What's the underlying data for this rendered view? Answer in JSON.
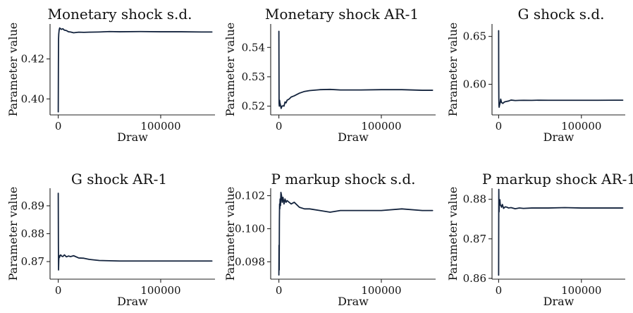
{
  "chart_data": [
    {
      "type": "line",
      "title": "Monetary shock s.d.",
      "xlabel": "Draw",
      "ylabel": "Parameter value",
      "xlim": [
        -8000,
        153000
      ],
      "ylim": [
        0.392,
        0.4375
      ],
      "x_ticks": [
        0,
        100000
      ],
      "x_tick_labels": [
        "0",
        "100000"
      ],
      "y_ticks": [
        0.4,
        0.42
      ],
      "y_tick_labels": [
        "0.40",
        "0.42"
      ],
      "grid": false,
      "series": [
        {
          "x": [
            0,
            150,
            300,
            500,
            900,
            1400,
            2000,
            3000,
            4500,
            6000,
            8000,
            10000,
            12000,
            15000,
            20000,
            25000,
            30000,
            40000,
            50000,
            60000,
            80000,
            100000,
            120000,
            140000,
            150000
          ],
          "y": [
            0.3935,
            0.418,
            0.43,
            0.4325,
            0.4345,
            0.4355,
            0.4352,
            0.4348,
            0.4351,
            0.4344,
            0.4342,
            0.4336,
            0.4335,
            0.4331,
            0.4334,
            0.4333,
            0.4334,
            0.4335,
            0.4337,
            0.4336,
            0.4337,
            0.4336,
            0.4336,
            0.4335,
            0.4335
          ],
          "color": "#13233d"
        }
      ]
    },
    {
      "type": "line",
      "title": "Monetary shock AR-1",
      "xlabel": "Draw",
      "ylabel": "Parameter value",
      "xlim": [
        -8000,
        153000
      ],
      "ylim": [
        0.517,
        0.548
      ],
      "x_ticks": [
        0,
        100000
      ],
      "x_tick_labels": [
        "0",
        "100000"
      ],
      "y_ticks": [
        0.52,
        0.53,
        0.54
      ],
      "y_tick_labels": [
        "0.52",
        "0.53",
        "0.54"
      ],
      "grid": false,
      "series": [
        {
          "x": [
            0,
            200,
            400,
            700,
            1000,
            1500,
            2200,
            3000,
            4000,
            5000,
            6000,
            7000,
            8000,
            10000,
            12000,
            15000,
            20000,
            25000,
            30000,
            40000,
            50000,
            60000,
            80000,
            100000,
            120000,
            140000,
            150000
          ],
          "y": [
            0.5455,
            0.521,
            0.52,
            0.522,
            0.5212,
            0.5204,
            0.5192,
            0.52,
            0.5201,
            0.52,
            0.5214,
            0.5211,
            0.522,
            0.5224,
            0.5231,
            0.5235,
            0.5244,
            0.525,
            0.5253,
            0.5256,
            0.5257,
            0.5255,
            0.5255,
            0.5256,
            0.5256,
            0.5254,
            0.5254
          ],
          "color": "#13233d"
        }
      ]
    },
    {
      "type": "line",
      "title": "G shock s.d.",
      "xlabel": "Draw",
      "ylabel": "Parameter value",
      "xlim": [
        -8000,
        153000
      ],
      "ylim": [
        0.568,
        0.663
      ],
      "x_ticks": [
        0,
        100000
      ],
      "x_tick_labels": [
        "0",
        "100000"
      ],
      "y_ticks": [
        0.6,
        0.65
      ],
      "y_tick_labels": [
        "0.60",
        "0.65"
      ],
      "grid": false,
      "series": [
        {
          "x": [
            0,
            100,
            250,
            400,
            600,
            900,
            1300,
            1800,
            2500,
            3500,
            5000,
            7000,
            9000,
            12000,
            15000,
            20000,
            25000,
            30000,
            40000,
            50000,
            60000,
            80000,
            100000,
            120000,
            140000,
            150000
          ],
          "y": [
            0.656,
            0.605,
            0.585,
            0.578,
            0.576,
            0.5775,
            0.579,
            0.5805,
            0.5845,
            0.581,
            0.58,
            0.5815,
            0.582,
            0.5825,
            0.5835,
            0.583,
            0.5832,
            0.5833,
            0.5832,
            0.5834,
            0.5833,
            0.5833,
            0.5833,
            0.5833,
            0.5834,
            0.5834
          ],
          "color": "#13233d"
        }
      ]
    },
    {
      "type": "line",
      "title": "G shock AR-1",
      "xlabel": "Draw",
      "ylabel": "Parameter value",
      "xlim": [
        -8000,
        153000
      ],
      "ylim": [
        0.8637,
        0.8963
      ],
      "x_ticks": [
        0,
        100000
      ],
      "x_tick_labels": [
        "0",
        "100000"
      ],
      "y_ticks": [
        0.87,
        0.88,
        0.89
      ],
      "y_tick_labels": [
        "0.87",
        "0.88",
        "0.89"
      ],
      "grid": false,
      "series": [
        {
          "x": [
            0,
            150,
            300,
            500,
            800,
            1200,
            1700,
            2400,
            3200,
            4500,
            6000,
            8000,
            10000,
            12000,
            15000,
            20000,
            25000,
            30000,
            40000,
            50000,
            60000,
            80000,
            100000,
            120000,
            140000,
            150000
          ],
          "y": [
            0.8945,
            0.876,
            0.867,
            0.8705,
            0.872,
            0.8715,
            0.8722,
            0.8724,
            0.872,
            0.8718,
            0.8724,
            0.8717,
            0.872,
            0.8718,
            0.8721,
            0.8713,
            0.8712,
            0.8708,
            0.8704,
            0.8703,
            0.8702,
            0.8702,
            0.8702,
            0.8702,
            0.8702,
            0.8702
          ],
          "color": "#13233d"
        }
      ]
    },
    {
      "type": "line",
      "title": "P markup shock s.d.",
      "xlabel": "Draw",
      "ylabel": "Parameter value",
      "xlim": [
        -8000,
        153000
      ],
      "ylim": [
        0.09695,
        0.10245
      ],
      "x_ticks": [
        0,
        100000
      ],
      "x_tick_labels": [
        "0",
        "100000"
      ],
      "y_ticks": [
        0.098,
        0.1,
        0.102
      ],
      "y_tick_labels": [
        "0.098",
        "0.100",
        "0.102"
      ],
      "grid": false,
      "series": [
        {
          "x": [
            0,
            150,
            300,
            500,
            700,
            900,
            1200,
            1600,
            2000,
            2600,
            3200,
            4000,
            5000,
            6000,
            7000,
            8000,
            10000,
            12000,
            15000,
            20000,
            25000,
            30000,
            40000,
            50000,
            60000,
            80000,
            100000,
            120000,
            140000,
            150000
          ],
          "y": [
            0.0972,
            0.099,
            0.0975,
            0.1005,
            0.1015,
            0.1012,
            0.1018,
            0.1014,
            0.1022,
            0.102,
            0.1016,
            0.1019,
            0.1015,
            0.1018,
            0.1016,
            0.1017,
            0.1016,
            0.1015,
            0.1016,
            0.1013,
            0.1012,
            0.1012,
            0.1011,
            0.101,
            0.1011,
            0.1011,
            0.1011,
            0.1012,
            0.1011,
            0.1011
          ],
          "color": "#13233d"
        }
      ]
    },
    {
      "type": "line",
      "title": "P markup shock AR-1",
      "xlabel": "Draw",
      "ylabel": "Parameter value",
      "xlim": [
        -8000,
        153000
      ],
      "ylim": [
        0.8598,
        0.8828
      ],
      "x_ticks": [
        0,
        100000
      ],
      "x_tick_labels": [
        "0",
        "100000"
      ],
      "y_ticks": [
        0.86,
        0.87,
        0.88
      ],
      "y_tick_labels": [
        "0.86",
        "0.87",
        "0.88"
      ],
      "grid": false,
      "series": [
        {
          "x": [
            0,
            100,
            200,
            350,
            500,
            700,
            1000,
            1500,
            2000,
            2700,
            3500,
            4500,
            6000,
            8000,
            10000,
            12000,
            15000,
            20000,
            25000,
            30000,
            40000,
            50000,
            60000,
            80000,
            100000,
            120000,
            140000,
            150000
          ],
          "y": [
            0.8608,
            0.874,
            0.8825,
            0.879,
            0.8768,
            0.8782,
            0.879,
            0.8799,
            0.8786,
            0.8784,
            0.878,
            0.8787,
            0.8777,
            0.8781,
            0.878,
            0.8778,
            0.8779,
            0.8776,
            0.8778,
            0.8777,
            0.8778,
            0.8778,
            0.8778,
            0.8779,
            0.8778,
            0.8778,
            0.8778,
            0.8778
          ],
          "color": "#13233d"
        }
      ]
    }
  ]
}
